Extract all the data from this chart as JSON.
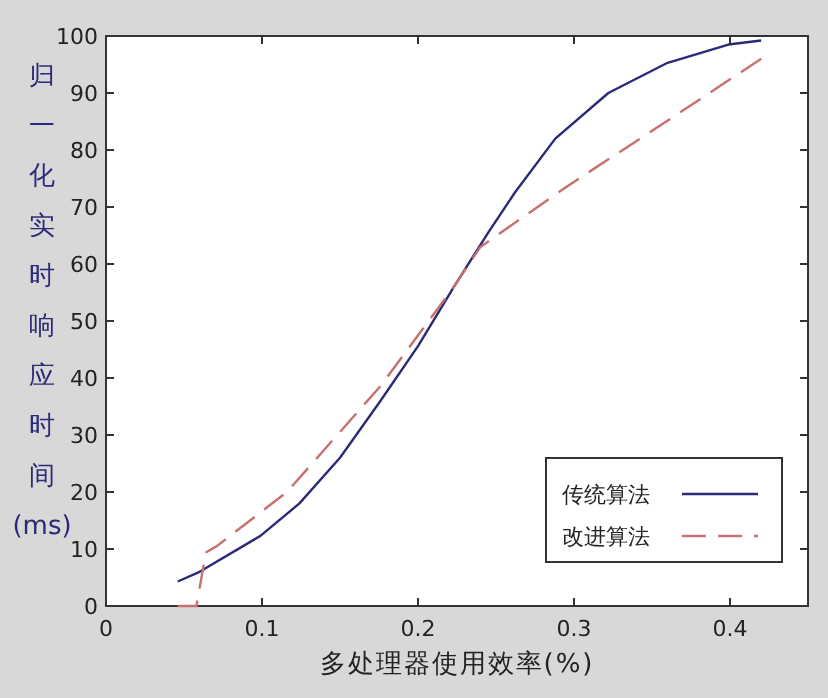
{
  "chart_data": {
    "type": "line",
    "xlabel": "多处理器使用效率(%)",
    "ylabel": "归一化实时响应时间(ms)",
    "xlim": [
      0,
      0.45
    ],
    "ylim": [
      0,
      100
    ],
    "xticks": [
      0,
      0.1,
      0.2,
      0.3,
      0.4
    ],
    "yticks": [
      0,
      10,
      20,
      30,
      40,
      50,
      60,
      70,
      80,
      90,
      100
    ],
    "legend": "bottom right",
    "grid": false,
    "series": [
      {
        "name": "传统算法",
        "color": "#2a2a78",
        "line_style": "solid",
        "x": [
          0.046,
          0.06,
          0.099,
          0.124,
          0.15,
          0.176,
          0.2,
          0.223,
          0.245,
          0.262,
          0.288,
          0.322,
          0.36,
          0.399,
          0.42
        ],
        "values": [
          4.3,
          6,
          12.3,
          18,
          26,
          36,
          45.6,
          56,
          65.5,
          72.5,
          82,
          90,
          95.3,
          98.5,
          99.2
        ]
      },
      {
        "name": "改进算法",
        "color": "#c87070",
        "line_style": "dashed",
        "x": [
          0.046,
          0.058,
          0.064,
          0.071,
          0.116,
          0.176,
          0.223,
          0.24,
          0.296,
          0.348,
          0.42
        ],
        "values": [
          0,
          0,
          9.4,
          10.5,
          20,
          38.6,
          56,
          63,
          73.7,
          83,
          96
        ]
      }
    ]
  }
}
